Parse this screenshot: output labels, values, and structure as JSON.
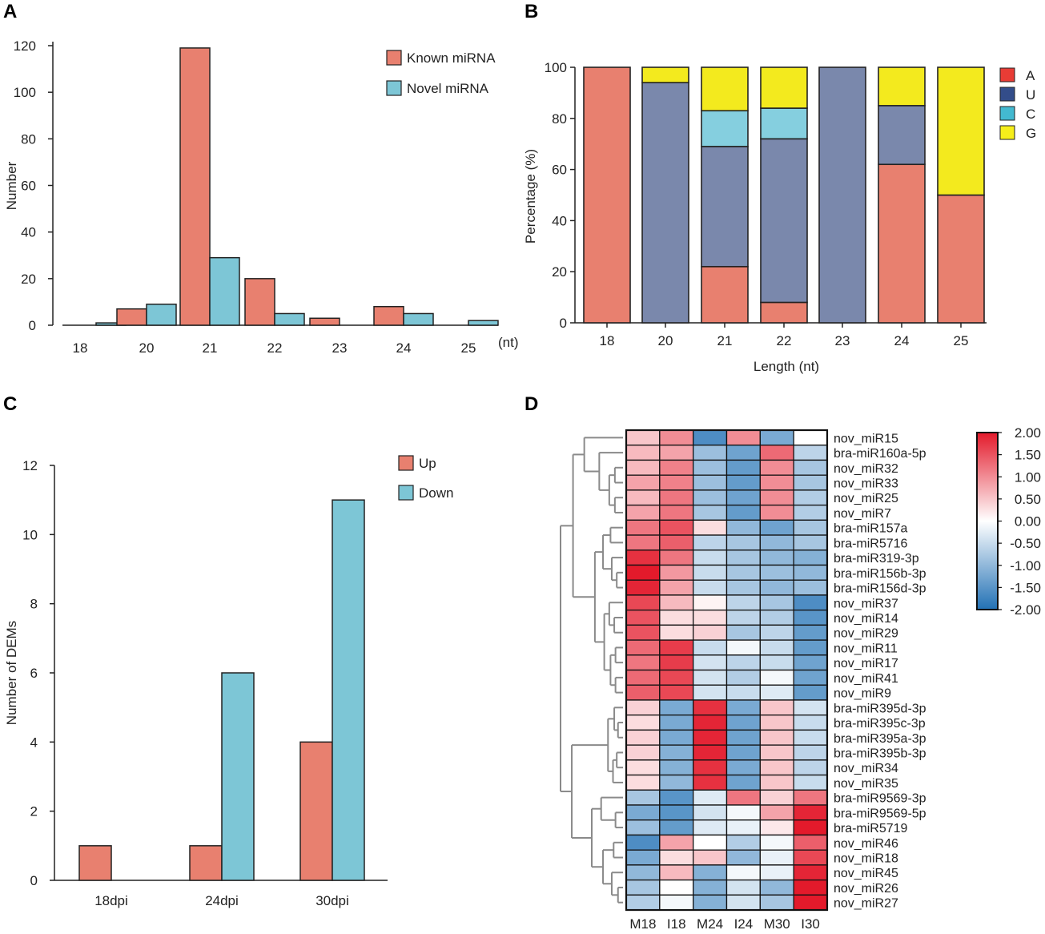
{
  "panel_letters": [
    "A",
    "B",
    "C",
    "D"
  ],
  "chart_data": [
    {
      "panel": "A",
      "type": "bar",
      "ylabel": "Number",
      "xlabel": "",
      "x_unit": "(nt)",
      "categories": [
        "18",
        "20",
        "21",
        "22",
        "23",
        "24",
        "25"
      ],
      "series": [
        {
          "name": "Known miRNA",
          "color": "#E8806F",
          "values": [
            0,
            7,
            119,
            20,
            3,
            8,
            0
          ]
        },
        {
          "name": "Novel miRNA",
          "color": "#7DC6D6",
          "values": [
            1,
            9,
            29,
            5,
            0,
            5,
            2
          ]
        }
      ],
      "ylim": [
        0,
        120
      ],
      "yticks": [
        0,
        20,
        40,
        60,
        80,
        100,
        120
      ],
      "legend": "top-right"
    },
    {
      "panel": "B",
      "type": "bar",
      "stacked": true,
      "ylabel": "Percentage (%)",
      "xlabel": "Length (nt)",
      "categories": [
        "18",
        "20",
        "21",
        "22",
        "23",
        "24",
        "25"
      ],
      "series": [
        {
          "name": "A",
          "color": "#E8806F",
          "values": [
            100,
            0,
            22,
            8,
            0,
            62,
            50
          ]
        },
        {
          "name": "U",
          "color": "#7A88AC",
          "values": [
            0,
            94,
            47,
            64,
            100,
            23,
            0
          ]
        },
        {
          "name": "C",
          "color": "#85CFDF",
          "values": [
            0,
            0,
            14,
            12,
            0,
            0,
            0
          ]
        },
        {
          "name": "G",
          "color": "#F3EA1E",
          "values": [
            0,
            6,
            17,
            16,
            0,
            15,
            50
          ]
        }
      ],
      "legend_colors": [
        "#E83C35",
        "#334D8A",
        "#43B9D0",
        "#F6EE1A"
      ],
      "ylim": [
        0,
        100
      ],
      "yticks": [
        0,
        20,
        40,
        60,
        80,
        100
      ],
      "legend": "right"
    },
    {
      "panel": "C",
      "type": "bar",
      "ylabel": "Number of DEMs",
      "xlabel": "",
      "categories": [
        "18dpi",
        "24dpi",
        "30dpi"
      ],
      "series": [
        {
          "name": "Up",
          "color": "#E8806F",
          "values": [
            1,
            1,
            4
          ]
        },
        {
          "name": "Down",
          "color": "#7DC6D6",
          "values": [
            0,
            6,
            11
          ]
        }
      ],
      "ylim": [
        0,
        12
      ],
      "yticks": [
        0,
        2,
        4,
        6,
        8,
        10,
        12
      ],
      "legend": "top-right"
    },
    {
      "panel": "D",
      "type": "heatmap",
      "columns": [
        "M18",
        "I18",
        "M24",
        "I24",
        "M30",
        "I30"
      ],
      "rows": [
        "nov_miR15",
        "bra-miR160a-5p",
        "nov_miR32",
        "nov_miR33",
        "nov_miR25",
        "nov_miR7",
        "bra-miR157a",
        "bra-miR5716",
        "bra-miR319-3p",
        "bra-miR156b-3p",
        "bra-miR156d-3p",
        "nov_miR37",
        "nov_miR14",
        "nov_miR29",
        "nov_miR11",
        "nov_miR17",
        "nov_miR41",
        "nov_miR9",
        "bra-miR395d-3p",
        "bra-miR395c-3p",
        "bra-miR395a-3p",
        "bra-miR395b-3p",
        "nov_miR34",
        "nov_miR35",
        "bra-miR9569-3p",
        "bra-miR9569-5p",
        "bra-miR5719",
        "nov_miR46",
        "nov_miR18",
        "nov_miR45",
        "nov_miR26",
        "nov_miR27"
      ],
      "values": [
        [
          0.5,
          1.0,
          -1.6,
          1.0,
          -1.2,
          0.0
        ],
        [
          0.6,
          0.8,
          -0.9,
          -1.3,
          1.3,
          -0.6
        ],
        [
          0.6,
          1.1,
          -0.9,
          -1.4,
          1.0,
          -0.8
        ],
        [
          0.8,
          1.1,
          -0.9,
          -1.4,
          1.0,
          -0.8
        ],
        [
          0.6,
          1.2,
          -0.9,
          -1.3,
          1.0,
          -0.7
        ],
        [
          0.8,
          1.2,
          -0.8,
          -1.4,
          1.0,
          -0.7
        ],
        [
          1.2,
          1.5,
          0.3,
          -1.0,
          -1.3,
          -0.8
        ],
        [
          1.2,
          1.4,
          -0.6,
          -0.8,
          -1.0,
          -0.8
        ],
        [
          1.8,
          1.2,
          -0.5,
          -0.8,
          -1.0,
          -1.1
        ],
        [
          2.0,
          0.9,
          -0.5,
          -0.8,
          -0.9,
          -1.0
        ],
        [
          1.9,
          0.8,
          -0.5,
          -0.8,
          -1.0,
          -0.9
        ],
        [
          1.6,
          0.6,
          0.1,
          -0.6,
          -0.8,
          -1.6
        ],
        [
          1.5,
          0.3,
          0.3,
          -0.6,
          -0.7,
          -1.5
        ],
        [
          1.5,
          0.3,
          0.4,
          -0.8,
          -0.6,
          -1.4
        ],
        [
          1.3,
          1.7,
          -0.5,
          -0.1,
          -0.5,
          -1.4
        ],
        [
          1.2,
          1.7,
          -0.4,
          -0.6,
          -0.5,
          -1.3
        ],
        [
          1.3,
          1.6,
          -0.4,
          -0.7,
          -0.1,
          -1.3
        ],
        [
          1.4,
          1.6,
          -0.4,
          -0.5,
          -0.3,
          -1.4
        ],
        [
          0.4,
          -1.2,
          1.8,
          -1.2,
          0.5,
          -0.4
        ],
        [
          0.3,
          -1.2,
          1.9,
          -1.3,
          0.5,
          -0.5
        ],
        [
          0.4,
          -1.2,
          1.9,
          -1.3,
          0.5,
          -0.5
        ],
        [
          0.4,
          -1.1,
          1.9,
          -1.3,
          0.5,
          -0.6
        ],
        [
          0.3,
          -1.1,
          1.8,
          -1.2,
          0.5,
          -0.6
        ],
        [
          0.3,
          -1.0,
          1.8,
          -1.3,
          0.5,
          -0.5
        ],
        [
          -0.8,
          -1.5,
          -0.3,
          1.2,
          0.4,
          1.2
        ],
        [
          -1.2,
          -1.5,
          -0.4,
          -0.1,
          0.8,
          1.9
        ],
        [
          -0.9,
          -1.4,
          -0.3,
          -0.2,
          0.2,
          2.0
        ],
        [
          -1.6,
          0.8,
          0.0,
          -0.7,
          -0.1,
          1.4
        ],
        [
          -1.2,
          0.3,
          0.5,
          -1.0,
          -0.2,
          1.6
        ],
        [
          -1.0,
          0.6,
          -1.1,
          -0.1,
          -0.2,
          1.9
        ],
        [
          -0.8,
          0.0,
          -1.1,
          -0.4,
          -1.0,
          2.0
        ],
        [
          -0.7,
          -0.1,
          -1.1,
          -0.4,
          -0.8,
          2.0
        ]
      ],
      "scale_min": -2.0,
      "scale_max": 2.0,
      "colorbar_ticks": [
        "2.00",
        "1.50",
        "1.00",
        "0.50",
        "0.00",
        "-0.50",
        "-1.00",
        "-1.50",
        "-2.00"
      ],
      "colorbar_colors": [
        "#2271B5",
        "#FFFFFF",
        "#E31A2B"
      ]
    }
  ]
}
